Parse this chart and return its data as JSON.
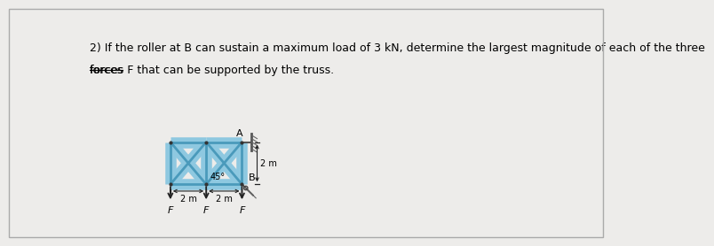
{
  "background_color": "#edecea",
  "border_color": "#aaaaaa",
  "text_line1": "2) If the roller at B can sustain a maximum load of 3 kN, determine the largest magnitude of each of the three",
  "text_line2_part1": "forces",
  "text_line2_part2": " F that can be supported by the truss.",
  "text_fontsize": 9.0,
  "truss_color": "#8ec8e0",
  "truss_edge_color": "#4a9abb",
  "truss_lw_fill": 9,
  "truss_lw_edge": 2.0,
  "arrow_color": "#222222",
  "dim_color": "#222222",
  "label_fontsize": 8,
  "small_fontsize": 7,
  "ox": 1.3,
  "oy": 0.42,
  "sx": 0.52,
  "sy": 0.62
}
